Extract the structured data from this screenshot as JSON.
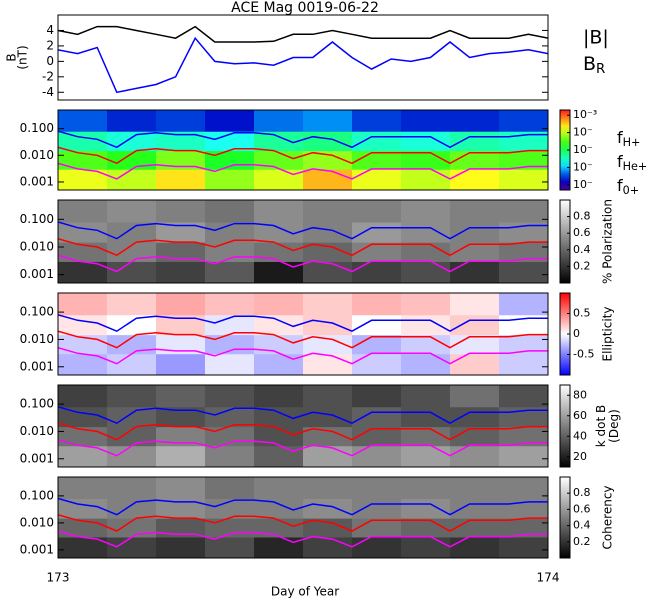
{
  "chart_data": [
    {
      "type": "line",
      "title": "ACE Mag 0019-06-22",
      "ylabel": [
        "B",
        "(nT)"
      ],
      "log": false,
      "xlim": [
        173,
        174
      ],
      "ylim": [
        -5,
        6
      ],
      "yticks": [
        -4,
        -2,
        0,
        2,
        4
      ],
      "x": [
        173.0,
        173.04,
        173.08,
        173.12,
        173.16,
        173.2,
        173.24,
        173.28,
        173.32,
        173.36,
        173.4,
        173.44,
        173.48,
        173.52,
        173.56,
        173.6,
        173.64,
        173.68,
        173.72,
        173.76,
        173.8,
        173.84,
        173.88,
        173.92,
        173.96,
        174.0
      ],
      "series": [
        {
          "name": "|B|",
          "color": "#000000",
          "values": [
            4,
            3.5,
            4.5,
            4.5,
            4,
            3.5,
            3,
            4.5,
            2.5,
            2.5,
            2.5,
            2.6,
            3.5,
            3.5,
            4,
            3.5,
            3,
            3,
            3,
            3,
            4,
            3,
            3,
            3,
            3.5,
            3
          ]
        },
        {
          "name": {
            "main": "B",
            "sub": "R"
          },
          "color": "#0000ff",
          "values": [
            1.5,
            1,
            1.8,
            -4,
            -3.5,
            -3,
            -2,
            3,
            0,
            -0.3,
            -0.2,
            -0.5,
            0.5,
            0.5,
            2.5,
            0.5,
            -1,
            0.3,
            0,
            0.5,
            2.5,
            0.5,
            1,
            1.2,
            1.5,
            1
          ]
        }
      ]
    },
    {
      "type": "spectrogram",
      "log": true,
      "colormap": "rainbow",
      "zlabel": [],
      "xlim": [
        173,
        174
      ],
      "ylim": [
        0.0005,
        0.5
      ],
      "yticks": [
        0.001,
        {
          "value": 0.01,
          "label": "0.010"
        },
        {
          "value": 0.1,
          "label": "0.100"
        }
      ],
      "zlim": [
        -7.3,
        -2.7
      ],
      "zticks": [
        {
          "value": -3,
          "label": "10⁻³"
        },
        {
          "value": -4,
          "label": "10⁻"
        },
        {
          "value": -5,
          "label": "10⁻"
        },
        {
          "value": -6,
          "label": "10⁻"
        },
        {
          "value": -7,
          "label": "10⁻"
        }
      ],
      "xbins": [
        173,
        173.1,
        173.2,
        173.3,
        173.4,
        173.5,
        173.6,
        173.7,
        173.8,
        173.9,
        174
      ],
      "ybins": [
        0.0005,
        0.003,
        0.015,
        0.08,
        0.5
      ],
      "z": [
        [
          -3.8,
          -4,
          -3.6,
          -4.2,
          -3.9,
          -3.4,
          -3.8,
          -4,
          -3.7,
          -3.9
        ],
        [
          -4.5,
          -4.7,
          -4.3,
          -4.8,
          -4.4,
          -4.2,
          -4.5,
          -4.6,
          -4.4,
          -4.5
        ],
        [
          -5.4,
          -5.6,
          -5.5,
          -5.7,
          -5.3,
          -5.2,
          -5.5,
          -5.6,
          -5.4,
          -5.5
        ],
        [
          -6.4,
          -6.6,
          -6.5,
          -6.7,
          -6.3,
          -6.2,
          -6.5,
          -6.6,
          -6.6,
          -6.5
        ]
      ],
      "x": [
        173.0,
        173.04,
        173.08,
        173.12,
        173.16,
        173.2,
        173.24,
        173.28,
        173.32,
        173.36,
        173.4,
        173.44,
        173.48,
        173.52,
        173.56,
        173.6,
        173.64,
        173.68,
        173.72,
        173.76,
        173.8,
        173.84,
        173.88,
        173.92,
        173.96,
        174.0
      ],
      "series": [
        {
          "name": {
            "main": "f",
            "sub": "H+"
          },
          "color": "#0000ff",
          "values": [
            0.08,
            0.05,
            0.04,
            0.02,
            0.06,
            0.07,
            0.06,
            0.06,
            0.04,
            0.07,
            0.07,
            0.06,
            0.03,
            0.05,
            0.04,
            0.02,
            0.05,
            0.05,
            0.05,
            0.05,
            0.02,
            0.05,
            0.05,
            0.05,
            0.06,
            0.06
          ]
        },
        {
          "name": {
            "main": "f",
            "sub": "He+"
          },
          "color": "#ff0000",
          "values": [
            0.02,
            0.0125,
            0.01,
            0.005,
            0.015,
            0.0175,
            0.015,
            0.015,
            0.01,
            0.0175,
            0.0175,
            0.015,
            0.0075,
            0.0125,
            0.01,
            0.005,
            0.0125,
            0.0125,
            0.0125,
            0.0125,
            0.005,
            0.0125,
            0.0125,
            0.0125,
            0.015,
            0.015
          ]
        },
        {
          "name": {
            "main": "f",
            "sub": "0+"
          },
          "color": "#ff00ff",
          "values": [
            0.005,
            0.0031,
            0.0025,
            0.0013,
            0.0038,
            0.0044,
            0.0038,
            0.0038,
            0.0025,
            0.0044,
            0.0044,
            0.0038,
            0.0019,
            0.0031,
            0.0025,
            0.0013,
            0.0031,
            0.0031,
            0.0031,
            0.0031,
            0.0013,
            0.0031,
            0.0031,
            0.0031,
            0.0038,
            0.0038
          ]
        }
      ]
    },
    {
      "type": "spectrogram",
      "log": true,
      "colormap": "gray",
      "zlabel": [
        "% Polarization"
      ],
      "xlim": [
        173,
        174
      ],
      "ylim": [
        0.0005,
        0.5
      ],
      "yticks": [
        0.001,
        {
          "value": 0.01,
          "label": "0.010"
        },
        {
          "value": 0.1,
          "label": "0.100"
        }
      ],
      "zlim": [
        0,
        1
      ],
      "zticks": [
        0.2,
        0.4,
        0.6,
        0.8
      ],
      "xbins": [
        173,
        173.1,
        173.2,
        173.3,
        173.4,
        173.5,
        173.6,
        173.7,
        173.8,
        173.9,
        174
      ],
      "ybins": [
        0.0005,
        0.003,
        0.015,
        0.08,
        0.5
      ],
      "z": [
        [
          0.2,
          0.3,
          0.25,
          0.35,
          0.1,
          0.3,
          0.25,
          0.3,
          0.2,
          0.3
        ],
        [
          0.45,
          0.5,
          0.4,
          0.5,
          0.45,
          0.4,
          0.5,
          0.45,
          0.5,
          0.45
        ],
        [
          0.55,
          0.5,
          0.6,
          0.5,
          0.55,
          0.5,
          0.6,
          0.55,
          0.5,
          0.55
        ],
        [
          0.5,
          0.55,
          0.5,
          0.45,
          0.55,
          0.5,
          0.5,
          0.55,
          0.5,
          0.5
        ]
      ]
    },
    {
      "type": "spectrogram",
      "log": true,
      "colormap": "bwr",
      "zlabel": [
        "Ellipticity"
      ],
      "xlim": [
        173,
        174
      ],
      "ylim": [
        0.0005,
        0.5
      ],
      "yticks": [
        0.001,
        {
          "value": 0.01,
          "label": "0.010"
        },
        {
          "value": 0.1,
          "label": "0.100"
        }
      ],
      "zlim": [
        -1,
        1
      ],
      "zticks": [
        -0.5,
        0,
        0.5
      ],
      "xbins": [
        173,
        173.1,
        173.2,
        173.3,
        173.4,
        173.5,
        173.6,
        173.7,
        173.8,
        173.9,
        174
      ],
      "ybins": [
        0.0005,
        0.003,
        0.015,
        0.08,
        0.5
      ],
      "z": [
        [
          -0.3,
          -0.2,
          -0.4,
          -0.1,
          -0.3,
          0.1,
          -0.2,
          -0.3,
          0.2,
          -0.2
        ],
        [
          -0.2,
          -0.3,
          -0.1,
          -0.3,
          -0.2,
          -0.1,
          -0.3,
          -0.2,
          -0.1,
          -0.2
        ],
        [
          0.1,
          0,
          0.2,
          -0.1,
          0.1,
          0.2,
          0,
          0.1,
          0.2,
          0
        ],
        [
          0.3,
          0.2,
          0.35,
          0.25,
          0.3,
          0.2,
          0.3,
          0.25,
          0.1,
          -0.3
        ]
      ]
    },
    {
      "type": "spectrogram",
      "log": true,
      "colormap": "gray",
      "zlabel": [
        "k dot B",
        "(Deg)"
      ],
      "xlim": [
        173,
        174
      ],
      "ylim": [
        0.0005,
        0.5
      ],
      "yticks": [
        0.001,
        {
          "value": 0.01,
          "label": "0.010"
        },
        {
          "value": 0.1,
          "label": "0.100"
        }
      ],
      "zlim": [
        10,
        90
      ],
      "zticks": [
        20,
        40,
        60,
        80
      ],
      "xbins": [
        173,
        173.1,
        173.2,
        173.3,
        173.4,
        173.5,
        173.6,
        173.7,
        173.8,
        173.9,
        174
      ],
      "ybins": [
        0.0005,
        0.003,
        0.015,
        0.08,
        0.5
      ],
      "z": [
        [
          60,
          55,
          65,
          50,
          40,
          60,
          55,
          60,
          55,
          60
        ],
        [
          45,
          40,
          50,
          45,
          35,
          45,
          40,
          45,
          40,
          45
        ],
        [
          35,
          40,
          35,
          40,
          35,
          35,
          40,
          35,
          35,
          40
        ],
        [
          30,
          35,
          40,
          35,
          30,
          35,
          30,
          35,
          45,
          35
        ]
      ]
    },
    {
      "type": "spectrogram",
      "log": true,
      "colormap": "gray",
      "zlabel": [
        "Coherency"
      ],
      "xlim": [
        173,
        174
      ],
      "ylim": [
        0.0005,
        0.5
      ],
      "yticks": [
        0.001,
        {
          "value": 0.01,
          "label": "0.010"
        },
        {
          "value": 0.1,
          "label": "0.100"
        }
      ],
      "zlim": [
        0,
        1
      ],
      "zticks": [
        0.2,
        0.4,
        0.6,
        0.8
      ],
      "xbins": [
        173,
        173.1,
        173.2,
        173.3,
        173.4,
        173.5,
        173.6,
        173.7,
        173.8,
        173.9,
        174
      ],
      "ybins": [
        0.0005,
        0.003,
        0.015,
        0.08,
        0.5
      ],
      "z": [
        [
          0.2,
          0.25,
          0.2,
          0.3,
          0.15,
          0.25,
          0.2,
          0.25,
          0.2,
          0.25
        ],
        [
          0.4,
          0.45,
          0.35,
          0.4,
          0.4,
          0.35,
          0.45,
          0.4,
          0.4,
          0.4
        ],
        [
          0.55,
          0.5,
          0.55,
          0.5,
          0.5,
          0.55,
          0.5,
          0.55,
          0.5,
          0.5
        ],
        [
          0.5,
          0.5,
          0.55,
          0.45,
          0.5,
          0.5,
          0.5,
          0.5,
          0.5,
          0.5
        ]
      ],
      "xlabel": "Day of Year",
      "xticks": [
        173,
        174
      ]
    }
  ]
}
